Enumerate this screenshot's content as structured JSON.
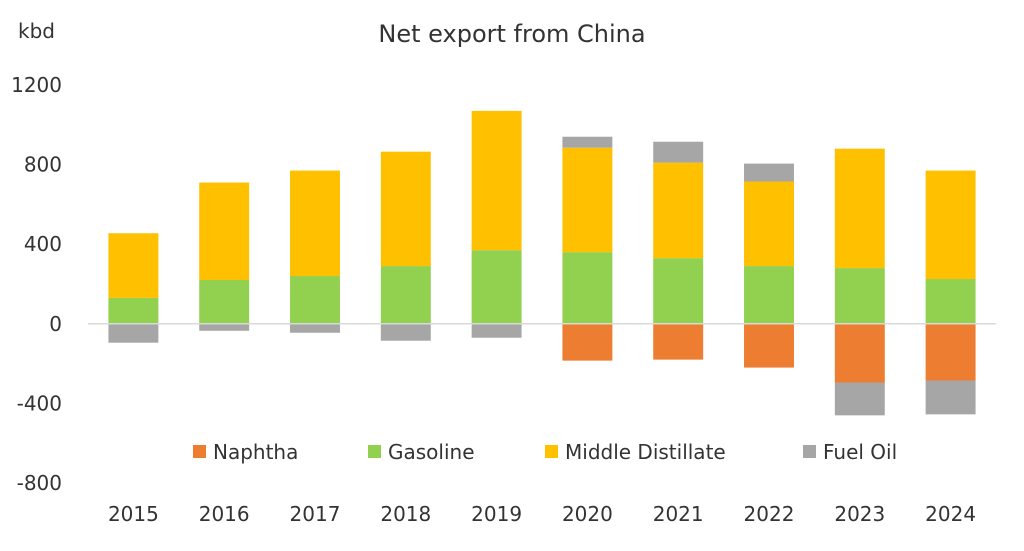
{
  "chart_data": {
    "type": "bar",
    "stacked": true,
    "title": "Net export from China",
    "ylabel": "kbd",
    "xlabel": "",
    "ylim": [
      -800,
      1200
    ],
    "yticks": [
      "1200",
      "800",
      "400",
      "0",
      "-400",
      "-800"
    ],
    "ytick_values": [
      1200,
      800,
      400,
      0,
      -400,
      -800
    ],
    "categories": [
      "2015",
      "2016",
      "2017",
      "2018",
      "2019",
      "2020",
      "2021",
      "2022",
      "2023",
      "2024"
    ],
    "series": [
      {
        "name": "Naphtha",
        "color": "#ED7D31",
        "values": [
          0,
          0,
          0,
          0,
          0,
          -185,
          -180,
          -220,
          -295,
          -285
        ]
      },
      {
        "name": "Gasoline",
        "color": "#92D050",
        "values": [
          130,
          220,
          240,
          290,
          370,
          360,
          330,
          290,
          280,
          225
        ]
      },
      {
        "name": "Middle Distillate",
        "color": "#FFC000",
        "values": [
          325,
          490,
          530,
          575,
          700,
          525,
          480,
          425,
          600,
          545
        ]
      },
      {
        "name": "Fuel Oil",
        "color": "#A6A6A6",
        "values": [
          -95,
          -35,
          -45,
          -85,
          -70,
          55,
          105,
          90,
          -165,
          -170
        ]
      }
    ],
    "grid": false,
    "legend_position": "bottom-inside"
  }
}
